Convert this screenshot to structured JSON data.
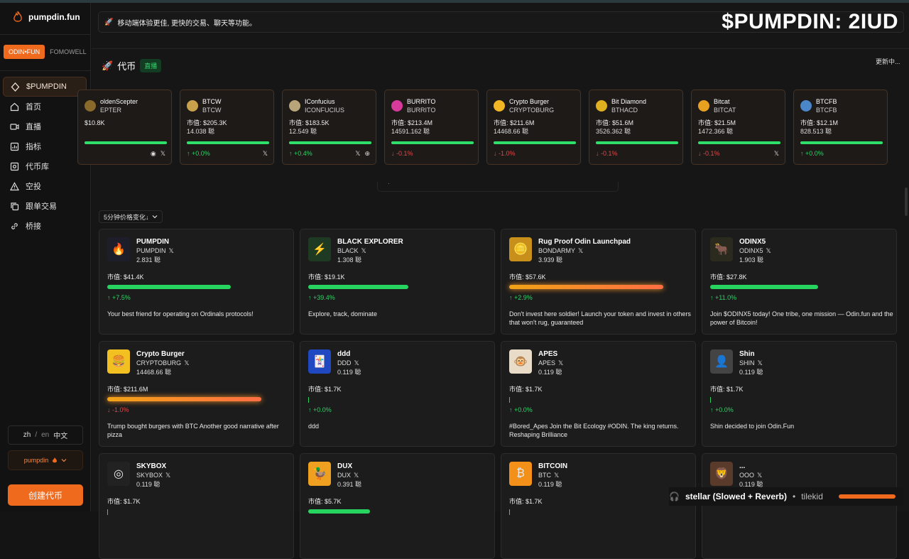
{
  "brand": {
    "name": "pumpdin.fun"
  },
  "switcher": [
    {
      "label": "ODIN•FUN",
      "active": true
    },
    {
      "label": "FOMOWELL",
      "active": false
    }
  ],
  "nav": [
    {
      "label": "$PUMPDIN",
      "icon": "diamond-icon",
      "active": true
    },
    {
      "label": "首页",
      "icon": "home-icon"
    },
    {
      "label": "直播",
      "icon": "video-icon"
    },
    {
      "label": "指标",
      "icon": "chart-icon"
    },
    {
      "label": "代币库",
      "icon": "vault-icon"
    },
    {
      "label": "空投",
      "icon": "warning-icon"
    },
    {
      "label": "跟单交易",
      "icon": "copy-icon"
    },
    {
      "label": "桥接",
      "icon": "link-icon"
    }
  ],
  "lang": {
    "zh": "zh",
    "sep": "/",
    "en": "en",
    "current": "中文"
  },
  "user": {
    "name": "pumpdin"
  },
  "create_button": "创建代币",
  "notice": "移动端体验更佳, 更快的交易、聊天等功能。",
  "overlay_title": "$PUMPDIN: 2IUD",
  "tokens_section": {
    "title": "代币",
    "live_badge": "直播",
    "updating": "更新中..."
  },
  "ticker": [
    {
      "name": "oldenScepter",
      "symbol": "EPTER",
      "cap": "$10.8K",
      "holders": "",
      "change": "",
      "dir": "up",
      "bar": 1.0,
      "color": "#8a6a2a",
      "icons": [
        "telegram",
        "x"
      ]
    },
    {
      "name": "BTCW",
      "symbol": "BTCW",
      "cap": "市值: $205.3K",
      "holders": "14.038 聪",
      "change": "↑ +0.0%",
      "dir": "up",
      "bar": 1.0,
      "color": "#c9a14a",
      "icons": [
        "x"
      ]
    },
    {
      "name": "IConfucius",
      "symbol": "ICONFUCIUS",
      "cap": "市值: $183.5K",
      "holders": "12.549 聪",
      "change": "↑ +0.4%",
      "dir": "up",
      "bar": 1.0,
      "color": "#b9a57a",
      "icons": [
        "x",
        "globe"
      ]
    },
    {
      "name": "BURRITO",
      "symbol": "BURRITO",
      "cap": "市值: $213.4M",
      "holders": "14591.162 聪",
      "change": "↓ -0.1%",
      "dir": "down",
      "bar": 1.0,
      "color": "#d63a9a",
      "icons": []
    },
    {
      "name": "Crypto Burger",
      "symbol": "CRYPTOBURG",
      "cap": "市值: $211.6M",
      "holders": "14468.66 聪",
      "change": "↓ -1.0%",
      "dir": "down",
      "bar": 1.0,
      "color": "#f2b624",
      "icons": []
    },
    {
      "name": "Bit Diamond",
      "symbol": "BTHACD",
      "cap": "市值: $51.6M",
      "holders": "3526.362 聪",
      "change": "↓ -0.1%",
      "dir": "down",
      "bar": 1.0,
      "color": "#e0b020",
      "icons": []
    },
    {
      "name": "Bitcat",
      "symbol": "BITCAT",
      "cap": "市值: $21.5M",
      "holders": "1472.366 聪",
      "change": "↓ -0.1%",
      "dir": "down",
      "bar": 1.0,
      "color": "#e8a020",
      "icons": [
        "x"
      ]
    },
    {
      "name": "BTCFB",
      "symbol": "BTCFB",
      "cap": "市值: $12.1M",
      "holders": "828.513 聪",
      "change": "↑ +0.0%",
      "dir": "up",
      "bar": 1.0,
      "color": "#4a86c8",
      "icons": []
    }
  ],
  "sort_label": "5分钟价格变化↓",
  "cards": [
    {
      "name": "PUMPDIN",
      "symbol": "PUMPDIN",
      "holders": "2.831 聪",
      "cap": "市值: $41.4K",
      "change": "↑ +7.5%",
      "dir": "up",
      "bar": 0.8,
      "bar_style": "green",
      "desc": "Your best friend for operating on Ordinals protocols!",
      "color": "#1e1e2a",
      "glyph": "🔥"
    },
    {
      "name": "BLACK EXPLORER",
      "symbol": "BLACK",
      "holders": "1.308 聪",
      "cap": "市值: $19.1K",
      "change": "↑ +39.4%",
      "dir": "up",
      "bar": 0.65,
      "bar_style": "green",
      "desc": "Explore, track, dominate",
      "color": "#1e3a22",
      "glyph": "⚡"
    },
    {
      "name": "Rug Proof Odin Launchpad",
      "symbol": "BONDARMY",
      "holders": "3.939 聪",
      "cap": "市值: $57.6K",
      "change": "↑ +2.9%",
      "dir": "up",
      "bar": 1.0,
      "bar_style": "orange",
      "desc": "Don't invest here soldier! Launch your token and invest in others that won't rug, guaranteed",
      "color": "#c8901a",
      "glyph": "🪙"
    },
    {
      "name": "ODINX5",
      "symbol": "ODINX5",
      "holders": "1.903 聪",
      "cap": "市值: $27.8K",
      "change": "↑ +11.0%",
      "dir": "up",
      "bar": 0.7,
      "bar_style": "green",
      "desc": "Join $ODINX5 today! One tribe, one mission — Odin.fun and the power of Bitcoin!",
      "color": "#2a2a1e",
      "glyph": "🐂"
    },
    {
      "name": "Crypto Burger",
      "symbol": "CRYPTOBURG",
      "holders": "14468.66 聪",
      "cap": "市值: $211.6M",
      "change": "↓ -1.0%",
      "dir": "down",
      "bar": 1.0,
      "bar_style": "orange",
      "desc": "Trump bought burgers with BTC Another good narrative after pizza",
      "color": "#f2c020",
      "glyph": "🍔"
    },
    {
      "name": "ddd",
      "symbol": "DDD",
      "holders": "0.119 聪",
      "cap": "市值: $1.7K",
      "change": "↑ +0.0%",
      "dir": "up",
      "bar": 0.0,
      "bar_style": "green",
      "desc": "ddd",
      "color": "#2048c0",
      "glyph": "🃏"
    },
    {
      "name": "APES",
      "symbol": "APES",
      "holders": "0.119 聪",
      "cap": "市值: $1.7K",
      "change": "↑ +0.0%",
      "dir": "up",
      "bar": 0.0,
      "bar_style": "green",
      "desc": "#Bored_Apes Join the Bit Ecology #ODIN. The king returns. Reshaping Brilliance",
      "color": "#e8dcc8",
      "glyph": "🐵"
    },
    {
      "name": "Shin",
      "symbol": "SHIN",
      "holders": "0.119 聪",
      "cap": "市值: $1.7K",
      "change": "↑ +0.0%",
      "dir": "up",
      "bar": 0.0,
      "bar_style": "green",
      "desc": "Shin decided to join Odin.Fun",
      "color": "#444",
      "glyph": "👤"
    },
    {
      "name": "SKYBOX",
      "symbol": "SKYBOX",
      "holders": "0.119 聪",
      "cap": "市值: $1.7K",
      "change": "",
      "dir": "up",
      "bar": 0.0,
      "bar_style": "green",
      "desc": "",
      "color": "#222",
      "glyph": "◎"
    },
    {
      "name": "DUX",
      "symbol": "DUX",
      "holders": "0.391 聪",
      "cap": "市值: $5.7K",
      "change": "",
      "dir": "up",
      "bar": 0.4,
      "bar_style": "green",
      "desc": "",
      "color": "#f0a020",
      "glyph": "🦆"
    },
    {
      "name": "BITCOIN",
      "symbol": "BTC",
      "holders": "0.119 聪",
      "cap": "市值: $1.7K",
      "change": "",
      "dir": "up",
      "bar": 0.0,
      "bar_style": "green",
      "desc": "",
      "color": "#f2901a",
      "glyph": "₿"
    },
    {
      "name": "...",
      "symbol": "OOO",
      "holders": "0.119 聪",
      "cap": "",
      "change": "",
      "dir": "up",
      "bar": 0.0,
      "bar_style": "green",
      "desc": "",
      "color": "#5a3a2a",
      "glyph": "🦁"
    }
  ],
  "music": {
    "title": "stellar (Slowed + Reverb)",
    "artist": "tilekid"
  }
}
